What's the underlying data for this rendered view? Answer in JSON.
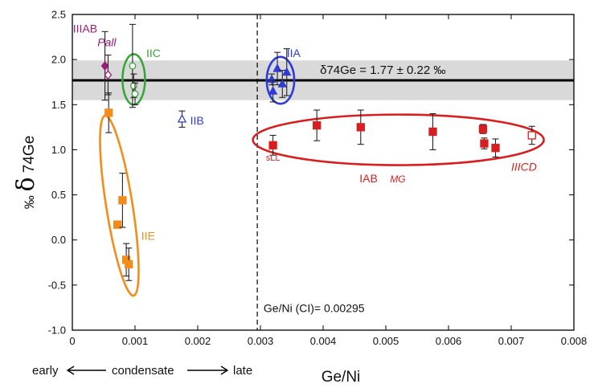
{
  "chart_data": {
    "type": "scatter",
    "xlabel": "Ge/Ni",
    "ylabel_prefix": "‰",
    "ylabel_main": "δ",
    "ylabel_suffix": "74Ge",
    "xlim": [
      0,
      0.008
    ],
    "ylim": [
      -1.0,
      2.5
    ],
    "x_ticks": [
      0,
      0.001,
      0.002,
      0.003,
      0.004,
      0.005,
      0.006,
      0.007,
      0.008
    ],
    "x_tick_labels": [
      "0",
      "0.001",
      "0.002",
      "0.003",
      "0.004",
      "0.005",
      "0.006",
      "0.007",
      "0.008"
    ],
    "y_ticks": [
      -1.0,
      -0.5,
      0.0,
      0.5,
      1.0,
      1.5,
      2.0,
      2.5
    ],
    "y_tick_labels": [
      "-1.0",
      "-0.5",
      "0.0",
      "0.5",
      "1.0",
      "1.5",
      "2.0",
      "2.5"
    ],
    "reference_line": {
      "y": 1.77,
      "band": [
        1.55,
        1.99
      ],
      "label": "δ74Ge = 1.77 ± 0.22 ‰"
    },
    "vertical_line": {
      "x": 0.00295,
      "label": "Ge/Ni (CI)= 0.00295"
    },
    "bottom_annotation": {
      "early": "early",
      "middle": "condensate",
      "late": "late"
    },
    "colors": {
      "IIIAB": "#9b1a7a",
      "Pall": "#9b1a7a",
      "IIC": "#3aa63a",
      "IIA": "#2e3bd6",
      "IIB": "#2e3bd6",
      "IAB": "#d81e1e",
      "IIICD": "#d81e1e",
      "IIE": "#f28c1a"
    },
    "groups": [
      {
        "name": "IIIAB",
        "marker": "diamond",
        "fill": "filled",
        "color": "#9b1a7a",
        "label_pos": [
          1e-05,
          2.3
        ],
        "points": [
          {
            "x": 0.00052,
            "y": 1.93,
            "err": 0.38
          }
        ]
      },
      {
        "name": "Pall",
        "marker": "diamond",
        "fill": "open",
        "color": "#9b1a7a",
        "label_pos": [
          0.0004,
          2.15
        ],
        "italic": true,
        "points": [
          {
            "x": 0.00057,
            "y": 1.83,
            "err": 0.22
          }
        ]
      },
      {
        "name": "IIC",
        "marker": "circle",
        "fill": "open",
        "color": "#3aa63a",
        "label_pos": [
          0.00118,
          2.03
        ],
        "ellipse": {
          "cx": 0.00098,
          "cy": 1.78,
          "rx": 0.00018,
          "ry": 0.28
        },
        "points": [
          {
            "x": 0.00096,
            "y": 1.93,
            "err": 0.46
          },
          {
            "x": 0.00098,
            "y": 1.71,
            "err": 0.13
          },
          {
            "x": 0.001,
            "y": 1.62,
            "err": 0.12
          }
        ]
      },
      {
        "name": "IIA",
        "marker": "triangle",
        "fill": "filled",
        "color": "#2e3bd6",
        "label_pos": [
          0.00342,
          2.03
        ],
        "ellipse": {
          "cx": 0.00332,
          "cy": 1.77,
          "rx": 0.00022,
          "ry": 0.26
        },
        "points": [
          {
            "x": 0.00318,
            "y": 1.78,
            "err": 0.06
          },
          {
            "x": 0.0032,
            "y": 1.65,
            "err": 0.12
          },
          {
            "x": 0.00327,
            "y": 1.9,
            "err": 0.18
          },
          {
            "x": 0.00335,
            "y": 1.73,
            "err": 0.15
          },
          {
            "x": 0.00342,
            "y": 1.86,
            "err": 0.26
          }
        ]
      },
      {
        "name": "IIB",
        "marker": "triangle",
        "fill": "open",
        "color": "#2e3bd6",
        "label_pos": [
          0.00188,
          1.28
        ],
        "points": [
          {
            "x": 0.00175,
            "y": 1.34,
            "err": 0.09
          }
        ]
      },
      {
        "name": "IAB",
        "marker": "square",
        "fill": "filled",
        "color": "#d81e1e",
        "label_pos": [
          0.00458,
          0.64
        ],
        "sub_label": "MG",
        "ellipse": {
          "cx": 0.0052,
          "cy": 1.11,
          "rx": 0.00232,
          "ry": 0.28
        },
        "points": [
          {
            "x": 0.0032,
            "y": 1.05,
            "err": 0.11
          },
          {
            "x": 0.0039,
            "y": 1.27,
            "err": 0.17
          },
          {
            "x": 0.0046,
            "y": 1.25,
            "err": 0.19
          },
          {
            "x": 0.00575,
            "y": 1.2,
            "err": 0.2
          },
          {
            "x": 0.00655,
            "y": 1.23,
            "err": 0.05
          },
          {
            "x": 0.00657,
            "y": 1.07,
            "err": 0.06
          },
          {
            "x": 0.00675,
            "y": 1.02,
            "err": 0.1
          }
        ]
      },
      {
        "name": "IIICD",
        "marker": "square",
        "fill": "open",
        "color": "#d81e1e",
        "label_pos": [
          0.007,
          0.77
        ],
        "italic": true,
        "points": [
          {
            "x": 0.00733,
            "y": 1.16,
            "err": 0.1
          }
        ]
      },
      {
        "name": "IIE",
        "marker": "square",
        "fill": "filled",
        "color": "#f28c1a",
        "label_pos": [
          0.0011,
          0.0
        ],
        "ellipse": {
          "cx": 0.00075,
          "cy": 0.38,
          "rx": 0.00021,
          "ry": 1.01,
          "rotate": -9
        },
        "points": [
          {
            "x": 0.00058,
            "y": 1.41,
            "err": 0.22
          },
          {
            "x": 0.00072,
            "y": 0.17,
            "err": 0.0
          },
          {
            "x": 0.0008,
            "y": 0.44,
            "err": 0.3
          },
          {
            "x": 0.00086,
            "y": -0.22,
            "err": 0.18
          },
          {
            "x": 0.0009,
            "y": -0.27,
            "err": 0.18
          }
        ]
      }
    ],
    "point_labels": [
      {
        "text": "sLL",
        "x": 0.0032,
        "y": 0.88,
        "color": "#d81e1e"
      }
    ],
    "grid": false
  }
}
